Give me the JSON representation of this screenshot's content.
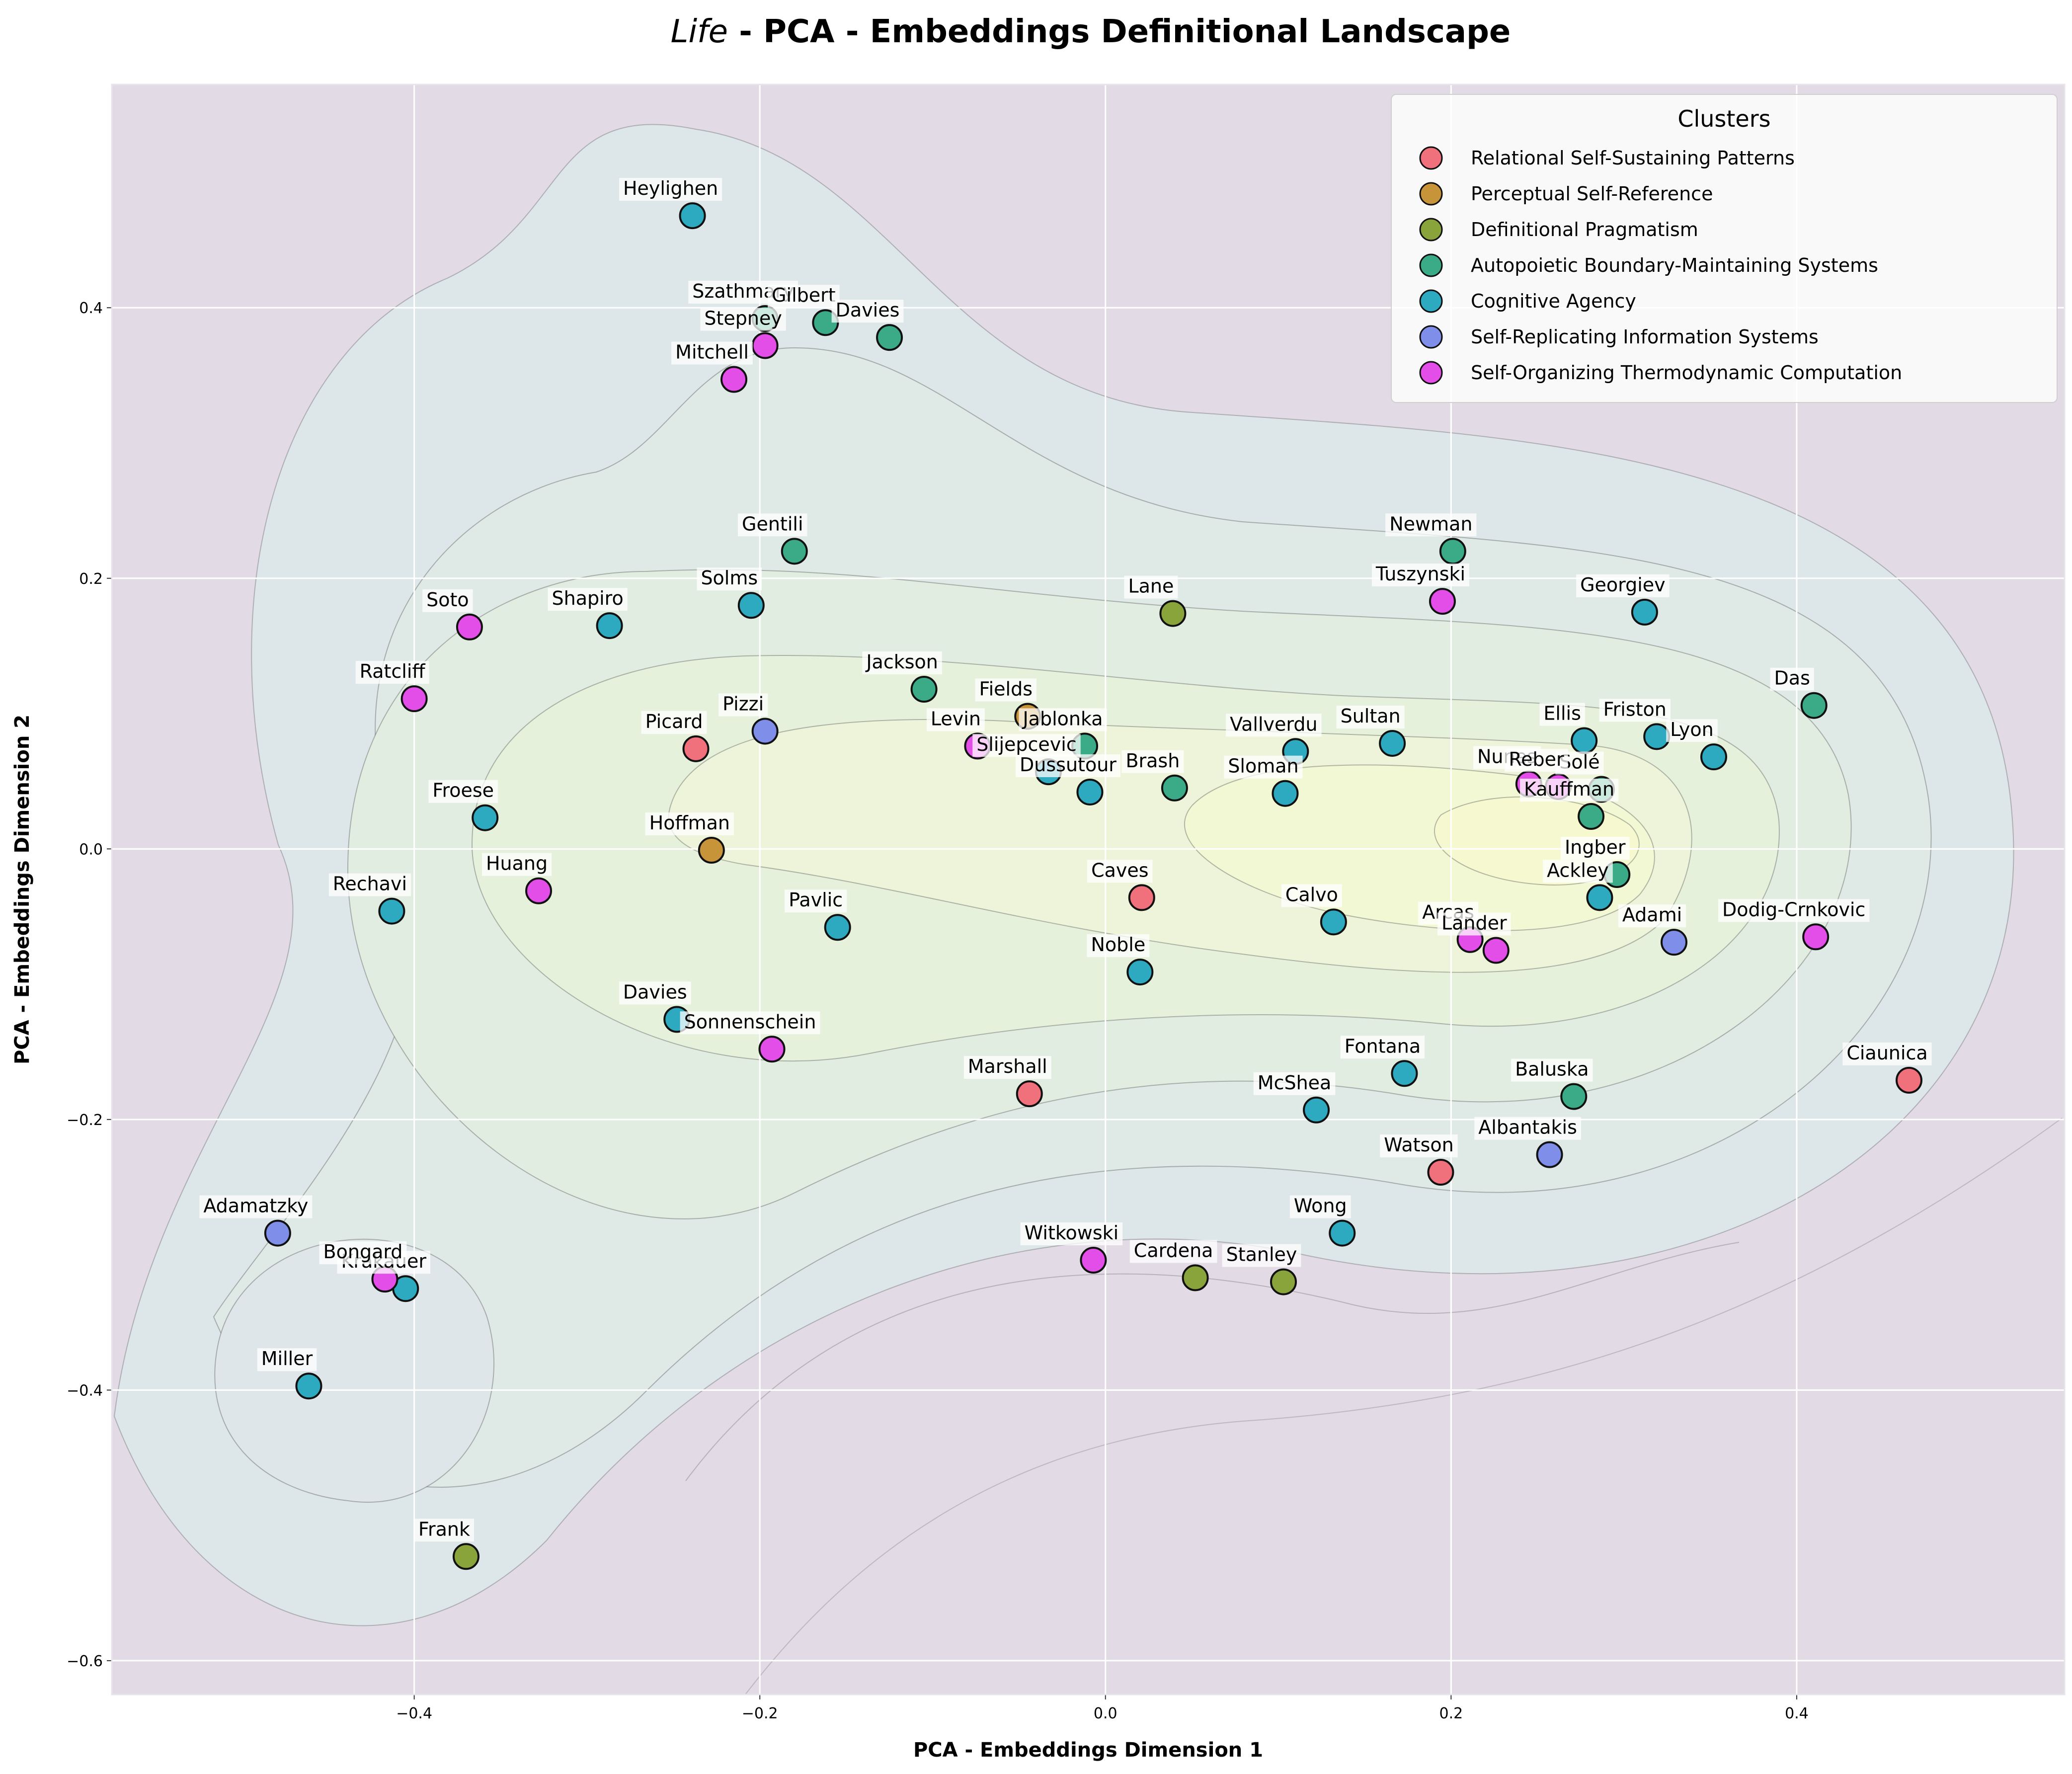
{
  "chart_data": {
    "type": "scatter",
    "title_italic": "Life",
    "title_rest": " - PCA - Embeddings Definitional Landscape",
    "xlabel": "PCA - Embeddings Dimension 1",
    "ylabel": "PCA - Embeddings Dimension 2",
    "xlim": [
      -0.575,
      0.555
    ],
    "ylim": [
      -0.625,
      0.565
    ],
    "xticks": [
      -0.4,
      -0.2,
      0.0,
      0.2,
      0.4
    ],
    "yticks": [
      -0.6,
      -0.4,
      -0.2,
      0.0,
      0.2,
      0.4
    ],
    "xtick_labels": [
      "−0.4",
      "−0.2",
      "0.0",
      "0.2",
      "0.4"
    ],
    "ytick_labels": [
      "−0.6",
      "−0.4",
      "−0.2",
      "0.0",
      "0.2",
      "0.4"
    ],
    "grid": true,
    "legend_title": "Clusters",
    "legend_position": "top-right",
    "series": [
      {
        "name": "Relational Self-Sustaining Patterns",
        "color": "#f0707c",
        "points": [
          [
            "Picard",
            -0.237,
            0.074
          ],
          [
            "Caves",
            0.021,
            -0.036
          ],
          [
            "Marshall",
            -0.044,
            -0.181
          ],
          [
            "Watson",
            0.194,
            -0.239
          ],
          [
            "Ciaunica",
            0.465,
            -0.171
          ]
        ]
      },
      {
        "name": "Perceptual Self-Reference",
        "color": "#c8943a",
        "points": [
          [
            "Hoffman",
            -0.228,
            -0.001
          ],
          [
            "Fields",
            -0.045,
            0.098
          ]
        ]
      },
      {
        "name": "Definitional Pragmatism",
        "color": "#8aa43c",
        "points": [
          [
            "Lane",
            0.039,
            0.174
          ],
          [
            "Cardena",
            0.052,
            -0.317
          ],
          [
            "Stanley",
            0.103,
            -0.32
          ],
          [
            "Frank",
            -0.37,
            -0.523
          ]
        ]
      },
      {
        "name": "Autopoietic Boundary-Maintaining Systems",
        "color": "#3aab86",
        "points": [
          [
            "Szathmary",
            -0.197,
            0.392
          ],
          [
            "Gilbert",
            -0.162,
            0.389
          ],
          [
            "Davies",
            -0.125,
            0.378
          ],
          [
            "Gentili",
            -0.18,
            0.22
          ],
          [
            "Jackson",
            -0.105,
            0.118
          ],
          [
            "Jablonka",
            -0.012,
            0.076
          ],
          [
            "Brash",
            0.04,
            0.045
          ],
          [
            "Newman",
            0.201,
            0.22
          ],
          [
            "Das",
            0.41,
            0.106
          ],
          [
            "Solé",
            0.287,
            0.044
          ],
          [
            "Kauffman",
            0.281,
            0.024
          ],
          [
            "Ingber",
            0.296,
            -0.019
          ],
          [
            "Baluska",
            0.271,
            -0.183
          ]
        ]
      },
      {
        "name": "Cognitive Agency",
        "color": "#2eaac0",
        "points": [
          [
            "Heylighen",
            -0.239,
            0.468
          ],
          [
            "Solms",
            -0.205,
            0.18
          ],
          [
            "Shapiro",
            -0.287,
            0.165
          ],
          [
            "Froese",
            -0.359,
            0.023
          ],
          [
            "Rechavi",
            -0.413,
            -0.046
          ],
          [
            "Pavlic",
            -0.155,
            -0.058
          ],
          [
            "Dussutour",
            -0.009,
            0.042
          ],
          [
            "Slijepcevic",
            -0.033,
            0.057
          ],
          [
            "Sloman",
            0.104,
            0.041
          ],
          [
            "Vallverdu",
            0.11,
            0.072
          ],
          [
            "Sultan",
            0.166,
            0.078
          ],
          [
            "Ellis",
            0.277,
            0.08
          ],
          [
            "Friston",
            0.319,
            0.083
          ],
          [
            "Lyon",
            0.352,
            0.068
          ],
          [
            "Georgiev",
            0.312,
            0.175
          ],
          [
            "Noble",
            0.02,
            -0.091
          ],
          [
            "Calvo",
            0.132,
            -0.054
          ],
          [
            "Ackley",
            0.286,
            -0.036
          ],
          [
            "Fontana",
            0.173,
            -0.166
          ],
          [
            "McShea",
            0.122,
            -0.193
          ],
          [
            "Wong",
            0.137,
            -0.284
          ],
          [
            "Krakauer",
            -0.405,
            -0.325
          ],
          [
            "Miller",
            -0.461,
            -0.397
          ]
        ]
      },
      {
        "name": "Self-Replicating Information Systems",
        "color": "#7f8ee8",
        "points": [
          [
            "Pizzi",
            -0.197,
            0.087
          ],
          [
            "Adami",
            0.329,
            -0.069
          ],
          [
            "Albantakis",
            0.257,
            -0.226
          ],
          [
            "Adamatzky",
            -0.479,
            -0.284
          ]
        ]
      },
      {
        "name": "Self-Organizing Thermodynamic Computation",
        "color": "#e34ee8",
        "points": [
          [
            "Stepney",
            -0.197,
            0.372
          ],
          [
            "Mitchell",
            -0.215,
            0.347
          ],
          [
            "Soto",
            -0.368,
            0.164
          ],
          [
            "Ratcliff",
            -0.4,
            0.111
          ],
          [
            "Levin",
            -0.074,
            0.076
          ],
          [
            "Huang",
            -0.328,
            -0.031
          ],
          [
            "Sonnenschein",
            -0.193,
            -0.148
          ],
          [
            "Tuszynski",
            0.195,
            0.183
          ],
          [
            "Arcas",
            0.211,
            -0.067
          ],
          [
            "Lander",
            0.226,
            -0.075
          ],
          [
            "Dodig-Crnkovic",
            0.411,
            -0.065
          ],
          [
            "Bongard",
            -0.417,
            -0.318
          ],
          [
            "Witkowski",
            -0.007,
            -0.304
          ],
          [
            "Nunes",
            0.245,
            0.048
          ],
          [
            "Reber",
            0.262,
            0.046
          ]
        ]
      }
    ],
    "unlisted_points": [
      [
        "Davies",
        -0.248,
        -0.126
      ]
    ]
  }
}
